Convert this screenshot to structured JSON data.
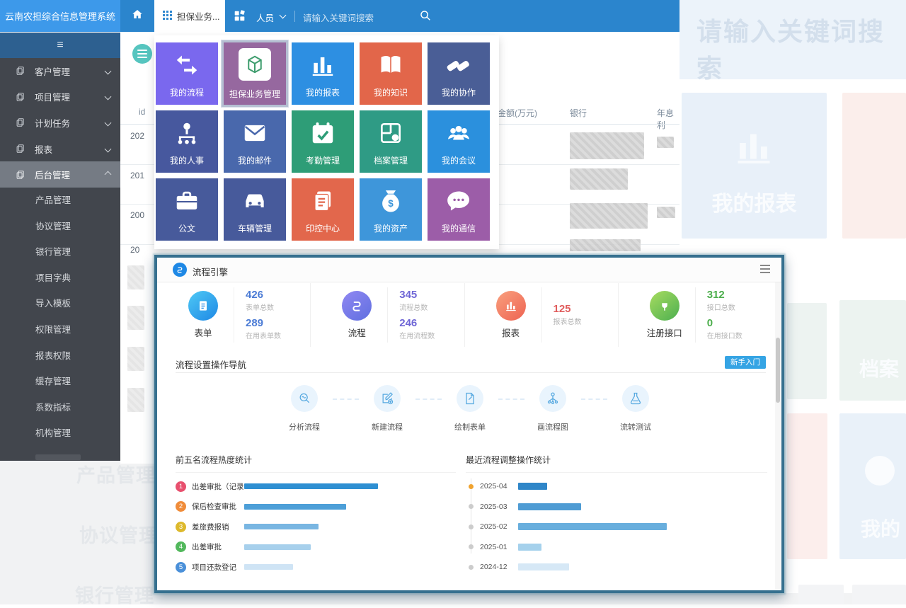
{
  "app": {
    "title": "云南农担综合信息管理系统"
  },
  "topbar": {
    "active_tab": "担保业务...",
    "user_menu": "人员",
    "search_placeholder": "请输入关键词搜索",
    "icons": [
      "home-icon",
      "grid-icon",
      "apps-icon",
      "chevron-down-icon",
      "search-icon"
    ]
  },
  "sidebar": {
    "toggle_icon": "hamburger-icon",
    "items": [
      {
        "label": "客户管理"
      },
      {
        "label": "项目管理"
      },
      {
        "label": "计划任务"
      },
      {
        "label": "报表"
      },
      {
        "label": "后台管理",
        "active": true
      }
    ],
    "submenu": [
      "产品管理",
      "协议管理",
      "银行管理",
      "项目字典",
      "导入模板",
      "权限管理",
      "报表权限",
      "缓存管理",
      "系数指标",
      "机构管理"
    ]
  },
  "background": {
    "table": {
      "headers": {
        "id": "id",
        "amount": "金额(万元)",
        "bank": "银行",
        "rate": "年息利"
      },
      "ids": [
        "202",
        "201",
        "200",
        "20"
      ]
    },
    "ghost": {
      "search": "请输入关键词搜索",
      "tile_report": "我的报表",
      "tile_archive": "档案",
      "tile_my": "我的",
      "sidebar_items": [
        "产品管理",
        "协议管理",
        "银行管理"
      ]
    }
  },
  "megamenu": {
    "tiles": [
      {
        "label": "我的流程",
        "color": "#7a68ee",
        "icon": "flow-arrows-icon"
      },
      {
        "label": "担保业务管理",
        "color": "#96689f",
        "icon": "green-cube-icon",
        "selected": true
      },
      {
        "label": "我的报表",
        "color": "#2d8fe2",
        "icon": "bar-chart-icon"
      },
      {
        "label": "我的知识",
        "color": "#e2664a",
        "icon": "open-book-icon"
      },
      {
        "label": "我的协作",
        "color": "#4a5e96",
        "icon": "handshake-icon"
      },
      {
        "label": "我的人事",
        "color": "#47589e",
        "icon": "person-org-icon"
      },
      {
        "label": "我的邮件",
        "color": "#4968ac",
        "icon": "envelope-icon"
      },
      {
        "label": "考勤管理",
        "color": "#2e9d77",
        "icon": "calendar-check-icon"
      },
      {
        "label": "档案管理",
        "color": "#2f9b85",
        "icon": "archive-gear-icon"
      },
      {
        "label": "我的会议",
        "color": "#2b90dd",
        "icon": "people-group-icon"
      },
      {
        "label": "公文",
        "color": "#475a9b",
        "icon": "briefcase-icon"
      },
      {
        "label": "车辆管理",
        "color": "#475a9b",
        "icon": "car-icon"
      },
      {
        "label": "印控中心",
        "color": "#e2674c",
        "icon": "documents-icon"
      },
      {
        "label": "我的资产",
        "color": "#3e96da",
        "icon": "money-bag-icon"
      },
      {
        "label": "我的通信",
        "color": "#9c5da8",
        "icon": "chat-bubble-icon"
      }
    ]
  },
  "modal": {
    "title": "流程引擎",
    "stats": [
      {
        "label": "表单",
        "icon": "form-icon",
        "grad": [
          "#4fc9f5",
          "#1e88e5"
        ],
        "accent": "#4b7bd5",
        "num1": "426",
        "cap1": "表单总数",
        "num2": "289",
        "cap2": "在用表单数"
      },
      {
        "label": "流程",
        "icon": "flow-icon",
        "grad": [
          "#9188f2",
          "#5f6fe0"
        ],
        "accent": "#6f66d6",
        "num1": "345",
        "cap1": "流程总数",
        "num2": "246",
        "cap2": "在用流程数"
      },
      {
        "label": "报表",
        "icon": "report-icon",
        "grad": [
          "#f9a07e",
          "#ee6352"
        ],
        "accent": "#e05c5c",
        "num1": "125",
        "cap1": "报表总数"
      },
      {
        "label": "注册接口",
        "icon": "plug-icon",
        "grad": [
          "#a8dc60",
          "#4caf50"
        ],
        "accent": "#4cae4c",
        "num1": "312",
        "cap1": "接口总数",
        "num2": "0",
        "cap2": "在用接口数"
      }
    ],
    "nav": {
      "title": "流程设置操作导航",
      "button": "新手入门",
      "steps": [
        "分析流程",
        "新建流程",
        "绘制表单",
        "画流程图",
        "流转测试"
      ]
    }
  },
  "chart_data": [
    {
      "type": "bar",
      "orientation": "horizontal",
      "title": "前五名流程热度统计",
      "categories": [
        "出差审批（记录...",
        "保后检查审批",
        "差旅费报销",
        "出差审批",
        "项目还款登记"
      ],
      "ranks": [
        "1",
        "2",
        "3",
        "4",
        "5"
      ],
      "values": [
        189,
        144,
        105,
        94,
        69
      ],
      "value_note": "relative bar lengths, no numeric axis shown",
      "bar_colors": [
        "#2e8fd2",
        "#4d9fd8",
        "#79b6e2",
        "#a7d0ec",
        "#cfe4f5"
      ],
      "rank_badge_colors": [
        "#e8506e",
        "#f08c3a",
        "#ddb92c",
        "#52b85c",
        "#4a90d9"
      ],
      "legend_position": "none",
      "grid": false
    },
    {
      "type": "bar",
      "orientation": "horizontal",
      "title": "最近流程调整操作统计",
      "categories": [
        "2025-04",
        "2025-03",
        "2025-02",
        "2025-01",
        "2024-12"
      ],
      "values": [
        41,
        89,
        210,
        33,
        72
      ],
      "value_note": "relative bar lengths, no numeric axis shown",
      "bar_colors": [
        "#2f86c8",
        "#4f9cd4",
        "#68aedd",
        "#a5d1ec",
        "#d6e8f6"
      ],
      "dot_colors": [
        "#f0a32f",
        "#cccccc",
        "#cccccc",
        "#cccccc",
        "#cccccc"
      ],
      "legend_position": "none",
      "grid": false
    }
  ]
}
